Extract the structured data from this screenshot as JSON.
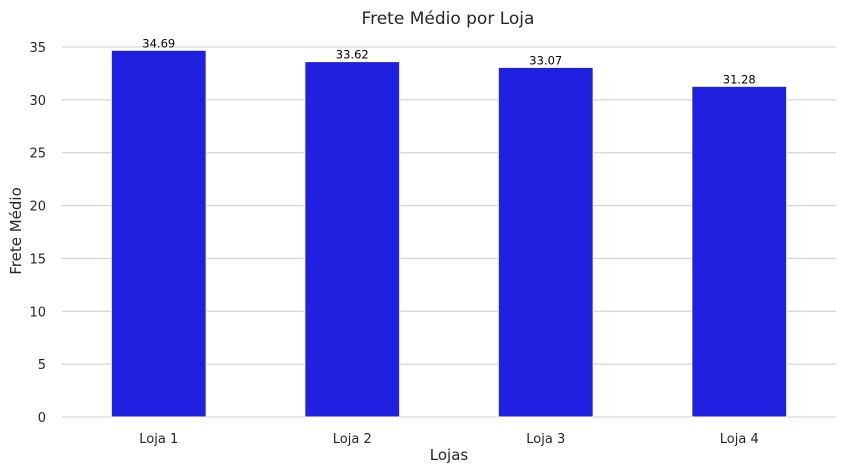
{
  "chart_data": {
    "type": "bar",
    "title": "Frete Médio por Loja",
    "xlabel": "Lojas",
    "ylabel": "Frete Médio",
    "categories": [
      "Loja 1",
      "Loja 2",
      "Loja 3",
      "Loja 4"
    ],
    "values": [
      34.69,
      33.62,
      33.07,
      31.28
    ],
    "data_labels": [
      "34.69",
      "33.62",
      "33.07",
      "31.28"
    ],
    "ylim": [
      0,
      35
    ],
    "yticks": [
      0,
      5,
      10,
      15,
      20,
      25,
      30,
      35
    ],
    "grid": "horizontal",
    "bar_color": "#2020e0"
  }
}
